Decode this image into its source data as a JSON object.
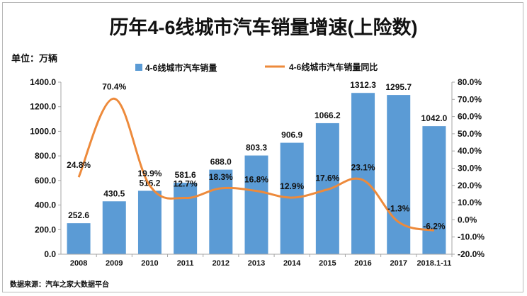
{
  "chart_data": {
    "type": "bar",
    "title": "历年4-6线城市汽车销量增速(上险数)",
    "unit_label": "单位：万辆",
    "source": "数据来源：汽车之家大数据平台",
    "categories": [
      "2008",
      "2009",
      "2010",
      "2011",
      "2012",
      "2013",
      "2014",
      "2015",
      "2016",
      "2017",
      "2018.1-11"
    ],
    "series": [
      {
        "name": "4-6线城市汽车销量",
        "type": "bar",
        "axis": "left",
        "color": "#5b9bd5",
        "values": [
          252.6,
          430.5,
          516.2,
          581.6,
          688.0,
          803.3,
          906.9,
          1066.2,
          1312.3,
          1295.7,
          1042.0
        ],
        "labels": [
          "252.6",
          "430.5",
          "516.2",
          "581.6",
          "688.0",
          "803.3",
          "906.9",
          "1066.2",
          "1312.3",
          "1295.7",
          "1042.0"
        ]
      },
      {
        "name": "4-6线城市汽车销量同比",
        "type": "line",
        "axis": "right",
        "color": "#ed8a3b",
        "values": [
          24.8,
          70.4,
          19.9,
          12.7,
          18.3,
          16.8,
          12.9,
          17.6,
          23.1,
          -1.3,
          -6.2
        ],
        "labels": [
          "24.8%",
          "70.4%",
          "19.9%",
          "12.7%",
          "18.3%",
          "16.8%",
          "12.9%",
          "17.6%",
          "23.1%",
          "-1.3%",
          "-6.2%"
        ]
      }
    ],
    "y_left": {
      "lim": [
        0,
        1400
      ],
      "ticks": [
        "0.0",
        "200.0",
        "400.0",
        "600.0",
        "800.0",
        "1000.0",
        "1200.0",
        "1400.0"
      ]
    },
    "y_right": {
      "lim": [
        -20,
        80
      ],
      "ticks": [
        "-20.0%",
        "-10.0%",
        "0.0%",
        "10.0%",
        "20.0%",
        "30.0%",
        "40.0%",
        "50.0%",
        "60.0%",
        "70.0%",
        "80.0%"
      ]
    },
    "grid": false,
    "legend": "top"
  }
}
